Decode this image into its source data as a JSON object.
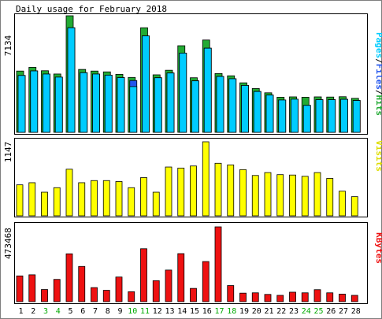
{
  "header": {
    "title": "Daily usage for February 2018"
  },
  "legend": {
    "pages": "Pages",
    "files": "Files",
    "hits": "Hits",
    "sep1": "/",
    "sep2": "/",
    "visits": "Visits",
    "kbytes": "KBytes"
  },
  "colors": {
    "background": "#ffffff",
    "frame": "#7f7f7f",
    "hits": "#22aa33",
    "files": "#2255ee",
    "pages": "#00ccff",
    "visits": "#ffff00",
    "kbytes": "#ee1111",
    "weekday_label": "#000000",
    "weekend_label": "#00aa00"
  },
  "chart_data": [
    {
      "type": "bar",
      "title": "Daily usage for February 2018",
      "categories": [
        "1",
        "2",
        "3",
        "4",
        "5",
        "6",
        "7",
        "8",
        "9",
        "10",
        "11",
        "12",
        "13",
        "14",
        "15",
        "16",
        "17",
        "18",
        "19",
        "20",
        "21",
        "22",
        "23",
        "24",
        "25",
        "26",
        "27",
        "28"
      ],
      "weekend_days": [
        "3",
        "4",
        "10",
        "11",
        "17",
        "18",
        "24",
        "25"
      ],
      "y_max_label": "7134",
      "ylim": [
        0,
        7134
      ],
      "series": [
        {
          "name": "Hits",
          "values": [
            3750,
            3980,
            3770,
            3570,
            7134,
            3850,
            3750,
            3700,
            3550,
            3360,
            6400,
            3520,
            3800,
            5300,
            3340,
            5650,
            3600,
            3460,
            3030,
            2680,
            2420,
            2150,
            2170,
            2150,
            2170,
            2160,
            2180,
            2080
          ]
        },
        {
          "name": "Files",
          "values": [
            3480,
            3760,
            3570,
            3380,
            6400,
            3650,
            3570,
            3500,
            3350,
            3170,
            5900,
            3340,
            3630,
            4850,
            3150,
            5150,
            3420,
            3280,
            2870,
            2500,
            2280,
            1980,
            2030,
            1650,
            2000,
            2000,
            2020,
            1950
          ]
        },
        {
          "name": "Pages",
          "values": [
            3480,
            3760,
            3570,
            3380,
            6400,
            3650,
            3570,
            3500,
            3350,
            2800,
            5900,
            3340,
            3630,
            4850,
            3150,
            5150,
            3420,
            3280,
            2870,
            2500,
            2280,
            1980,
            2030,
            1650,
            2000,
            2000,
            2020,
            1950
          ]
        }
      ]
    },
    {
      "type": "bar",
      "categories": [
        "1",
        "2",
        "3",
        "4",
        "5",
        "6",
        "7",
        "8",
        "9",
        "10",
        "11",
        "12",
        "13",
        "14",
        "15",
        "16",
        "17",
        "18",
        "19",
        "20",
        "21",
        "22",
        "23",
        "24",
        "25",
        "26",
        "27",
        "28"
      ],
      "y_max_label": "1147",
      "ylim": [
        0,
        1147
      ],
      "series": [
        {
          "name": "Visits",
          "values": [
            480,
            513,
            366,
            436,
            722,
            513,
            546,
            546,
            531,
            436,
            592,
            366,
            756,
            740,
            772,
            1147,
            814,
            789,
            716,
            625,
            670,
            638,
            632,
            612,
            670,
            580,
            382,
            297
          ]
        }
      ]
    },
    {
      "type": "bar",
      "categories": [
        "1",
        "2",
        "3",
        "4",
        "5",
        "6",
        "7",
        "8",
        "9",
        "10",
        "11",
        "12",
        "13",
        "14",
        "15",
        "16",
        "17",
        "18",
        "19",
        "20",
        "21",
        "22",
        "23",
        "24",
        "25",
        "26",
        "27",
        "28"
      ],
      "y_max_label": "473468",
      "ylim": [
        0,
        473468
      ],
      "series": [
        {
          "name": "KBytes",
          "values": [
            163000,
            170000,
            77000,
            141000,
            303000,
            223000,
            89000,
            72000,
            156000,
            63000,
            335000,
            133000,
            200000,
            304000,
            84000,
            254000,
            473468,
            102000,
            54000,
            56000,
            46000,
            40000,
            60000,
            56000,
            76000,
            56000,
            48000,
            40000
          ]
        }
      ]
    }
  ]
}
